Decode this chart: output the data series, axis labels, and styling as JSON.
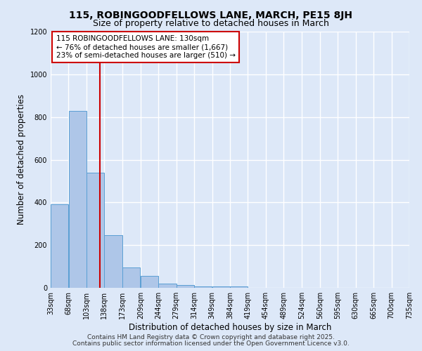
{
  "title_line1": "115, ROBINGOODFELLOWS LANE, MARCH, PE15 8JH",
  "title_line2": "Size of property relative to detached houses in March",
  "xlabel": "Distribution of detached houses by size in March",
  "ylabel": "Number of detached properties",
  "bin_edges": [
    33,
    68,
    103,
    138,
    173,
    209,
    244,
    279,
    314,
    349,
    384,
    419,
    454,
    489,
    524,
    560,
    595,
    630,
    665,
    700,
    735
  ],
  "bar_heights": [
    390,
    830,
    540,
    245,
    95,
    55,
    20,
    12,
    8,
    5,
    8,
    0,
    0,
    0,
    0,
    0,
    0,
    0,
    0,
    0
  ],
  "bar_color": "#aec6e8",
  "bar_edge_color": "#5a9fd4",
  "red_line_x": 130,
  "red_line_color": "#cc0000",
  "ylim": [
    0,
    1200
  ],
  "yticks": [
    0,
    200,
    400,
    600,
    800,
    1000,
    1200
  ],
  "background_color": "#dde8f8",
  "grid_color": "#ffffff",
  "annotation_text": "115 ROBINGOODFELLOWS LANE: 130sqm\n← 76% of detached houses are smaller (1,667)\n23% of semi-detached houses are larger (510) →",
  "annotation_box_color": "#ffffff",
  "annotation_box_edge": "#cc0000",
  "footnote1": "Contains HM Land Registry data © Crown copyright and database right 2025.",
  "footnote2": "Contains public sector information licensed under the Open Government Licence v3.0."
}
